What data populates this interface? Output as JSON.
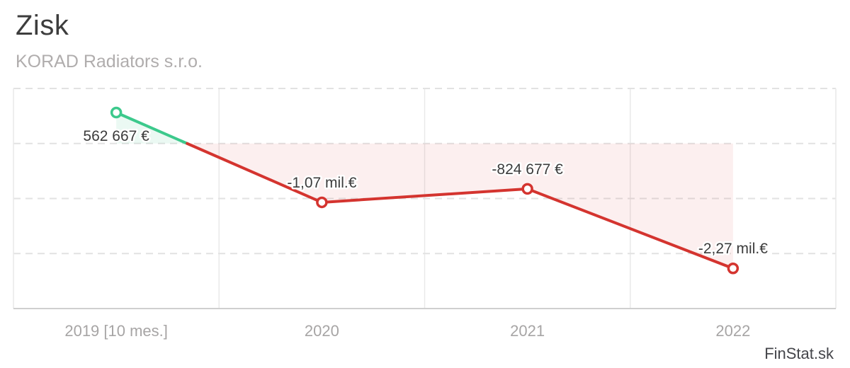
{
  "header": {
    "title": "Zisk",
    "subtitle": "KORAD Radiators s.r.o."
  },
  "footer": {
    "brand": "FinStat.sk"
  },
  "chart_data": {
    "type": "line",
    "title": "Zisk",
    "subtitle": "KORAD Radiators s.r.o.",
    "categories": [
      "2019 [10 mes.]",
      "2020",
      "2021",
      "2022"
    ],
    "series": [
      {
        "name": "Zisk",
        "values": [
          562667,
          -1070000,
          -824677,
          -2270000
        ]
      }
    ],
    "point_labels": [
      "562 667 €",
      "-1,07 mil.€",
      "-824 677 €",
      "-2,27 mil.€"
    ],
    "ylim": [
      -3000000,
      1000000
    ],
    "y_gridline_values": [
      1000000,
      0,
      -1000000,
      -2000000
    ],
    "area_fill_to_zero": true,
    "grid": true,
    "legend": "none",
    "colors": {
      "positive_line": "#3cc98c",
      "negative_line": "#d4342f",
      "positive_fill": "rgba(60,201,140,0.10)",
      "negative_fill": "rgba(212,52,47,0.08)",
      "h_gridline": "#e2e2e2",
      "v_gridline": "#e9e9e9",
      "side_border": "#e9e9e9",
      "bottom_axis": "#cfcfcf",
      "point_label_text": "#3b3b3b",
      "axis_label_text": "#a7a5a5",
      "marker_fill": "#ffffff"
    }
  }
}
